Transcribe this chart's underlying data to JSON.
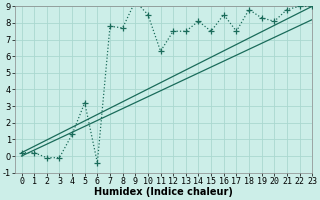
{
  "xlabel": "Humidex (Indice chaleur)",
  "background_color": "#cceee8",
  "grid_color": "#aad8d0",
  "line_color": "#1a6b5a",
  "xlim": [
    -0.5,
    23
  ],
  "ylim": [
    -1,
    9
  ],
  "xticks": [
    0,
    1,
    2,
    3,
    4,
    5,
    6,
    7,
    8,
    9,
    10,
    11,
    12,
    13,
    14,
    15,
    16,
    17,
    18,
    19,
    20,
    21,
    22,
    23
  ],
  "yticks": [
    -1,
    0,
    1,
    2,
    3,
    4,
    5,
    6,
    7,
    8,
    9
  ],
  "line1_x": [
    0,
    1,
    2,
    3,
    4,
    5,
    6,
    7,
    8,
    9,
    10,
    11,
    12,
    13,
    14,
    15,
    16,
    17,
    18,
    19,
    20,
    21,
    22,
    23
  ],
  "line1_y": [
    0.2,
    0.2,
    -0.1,
    -0.1,
    1.3,
    3.2,
    -0.4,
    7.8,
    7.7,
    9.3,
    8.5,
    6.3,
    7.5,
    7.5,
    8.1,
    7.5,
    8.5,
    7.5,
    8.8,
    8.3,
    8.1,
    8.8,
    9.0,
    9.0
  ],
  "line2_x": [
    0,
    23
  ],
  "line2_y": [
    0.2,
    9.0
  ],
  "line3_x": [
    0,
    23
  ],
  "line3_y": [
    0.0,
    8.2
  ],
  "tick_fontsize": 6,
  "label_fontsize": 7
}
